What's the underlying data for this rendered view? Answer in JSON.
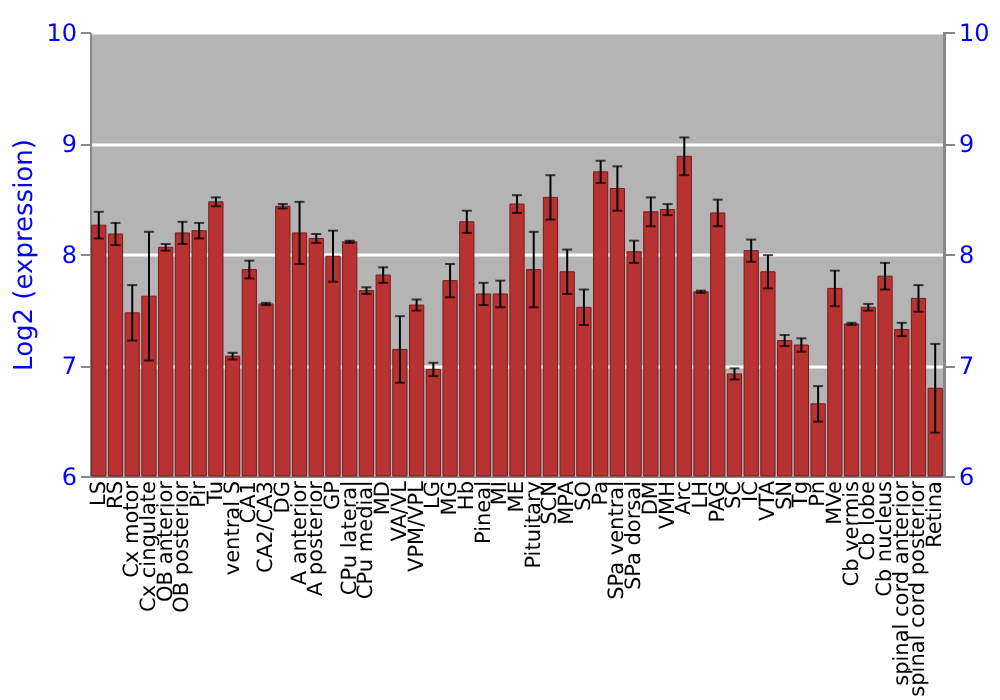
{
  "chart_data": {
    "type": "bar",
    "ylabel": "Log2 (expression)",
    "categories": [
      "LS",
      "RS",
      "Cx motor",
      "Cx cingulate",
      "OB anterior",
      "OB posterior",
      "Pir",
      "Tu",
      "ventral S",
      "CA1",
      "CA2/CA3",
      "DG",
      "A anterior",
      "A posterior",
      "GP",
      "CPu lateral",
      "CPu medial",
      "MD",
      "VA/VL",
      "VPM/VPL",
      "LG",
      "MG",
      "Hb",
      "Pineal",
      "MI",
      "ME",
      "Pituitary",
      "SCN",
      "MPA",
      "SO",
      "Pa",
      "SPa ventral",
      "SPa dorsal",
      "DM",
      "VMH",
      "Arc",
      "LH",
      "PAG",
      "SC",
      "IC",
      "VTA",
      "SN",
      "Tg",
      "Pn",
      "MVe",
      "Cb vermis",
      "Cb lobe",
      "Cb nucleus",
      "spinal cord anterior",
      "spinal cord posterior",
      "Retina"
    ],
    "values": [
      8.26,
      8.18,
      7.47,
      7.62,
      8.06,
      8.19,
      8.21,
      8.47,
      7.08,
      7.86,
      7.55,
      8.43,
      8.19,
      8.14,
      7.98,
      8.11,
      7.67,
      7.81,
      7.14,
      7.54,
      6.96,
      7.76,
      8.29,
      7.64,
      7.64,
      8.45,
      7.86,
      8.51,
      7.84,
      7.52,
      8.74,
      8.59,
      8.02,
      8.38,
      8.4,
      8.88,
      7.66,
      8.37,
      6.92,
      8.03,
      7.84,
      7.22,
      7.18,
      6.65,
      7.69,
      7.37,
      7.52,
      7.8,
      7.32,
      7.6,
      6.79
    ],
    "errors": [
      0.12,
      0.1,
      0.25,
      0.58,
      0.03,
      0.1,
      0.07,
      0.04,
      0.03,
      0.08,
      0.01,
      0.02,
      0.28,
      0.04,
      0.23,
      0.01,
      0.03,
      0.07,
      0.3,
      0.05,
      0.06,
      0.15,
      0.1,
      0.1,
      0.12,
      0.08,
      0.34,
      0.2,
      0.2,
      0.16,
      0.1,
      0.2,
      0.1,
      0.13,
      0.05,
      0.17,
      0.01,
      0.12,
      0.05,
      0.1,
      0.15,
      0.05,
      0.06,
      0.16,
      0.16,
      0.01,
      0.03,
      0.12,
      0.06,
      0.12,
      0.4
    ],
    "color": "#b83232",
    "ylim": [
      6,
      10
    ],
    "yticks": [
      6,
      7,
      8,
      9,
      10
    ],
    "y2lim": [
      6,
      10
    ],
    "y2ticks": [
      6,
      7,
      8,
      9,
      10
    ],
    "grid": "y"
  }
}
